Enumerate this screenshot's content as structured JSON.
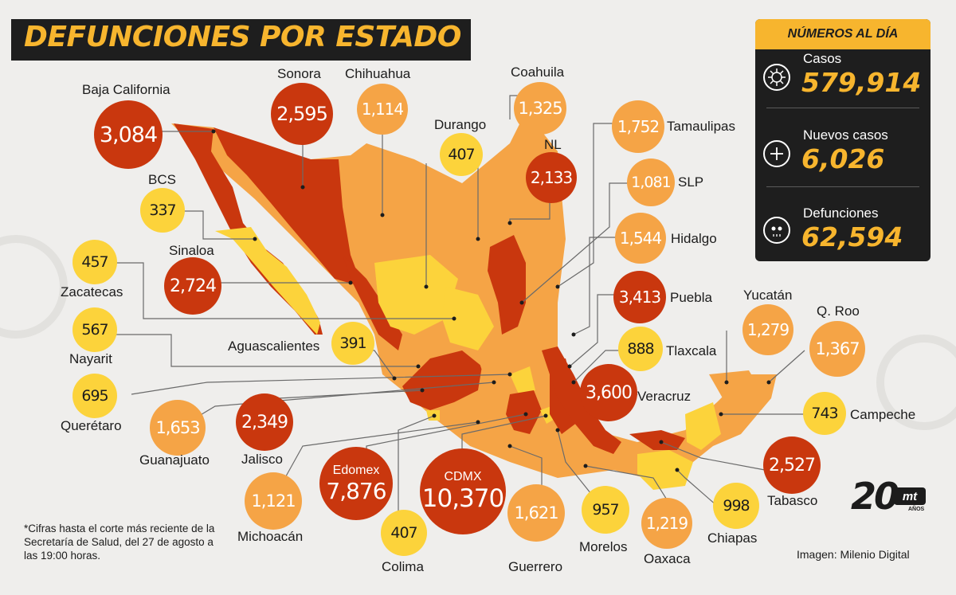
{
  "title": "DEFUNCIONES POR ESTADO",
  "panel": {
    "heading": "NÚMEROS AL DÍA",
    "stats": [
      {
        "label": "Casos",
        "value": "579,914",
        "icon": "virus-icon"
      },
      {
        "label": "Nuevos casos",
        "value": "6,026",
        "icon": "plus-circle-icon"
      },
      {
        "label": "Defunciones",
        "value": "62,594",
        "icon": "skull-icon"
      }
    ]
  },
  "states": [
    {
      "name": "Baja California",
      "value": "3,084",
      "level": "high"
    },
    {
      "name": "Sonora",
      "value": "2,595",
      "level": "high"
    },
    {
      "name": "Chihuahua",
      "value": "1,114",
      "level": "medium"
    },
    {
      "name": "Coahuila",
      "value": "1,325",
      "level": "medium"
    },
    {
      "name": "Durango",
      "value": "407",
      "level": "low"
    },
    {
      "name": "NL",
      "value": "2,133",
      "level": "high"
    },
    {
      "name": "Tamaulipas",
      "value": "1,752",
      "level": "medium"
    },
    {
      "name": "BCS",
      "value": "337",
      "level": "low"
    },
    {
      "name": "SLP",
      "value": "1,081",
      "level": "medium"
    },
    {
      "name": "Hidalgo",
      "value": "1,544",
      "level": "medium"
    },
    {
      "name": "Zacatecas",
      "value": "457",
      "level": "low"
    },
    {
      "name": "Sinaloa",
      "value": "2,724",
      "level": "high"
    },
    {
      "name": "Puebla",
      "value": "3,413",
      "level": "high"
    },
    {
      "name": "Nayarit",
      "value": "567",
      "level": "low"
    },
    {
      "name": "Aguascalientes",
      "value": "391",
      "level": "low"
    },
    {
      "name": "Tlaxcala",
      "value": "888",
      "level": "low"
    },
    {
      "name": "Yucatán",
      "value": "1,279",
      "level": "medium"
    },
    {
      "name": "Q. Roo",
      "value": "1,367",
      "level": "medium"
    },
    {
      "name": "Querétaro",
      "value": "695",
      "level": "low"
    },
    {
      "name": "Veracruz",
      "value": "3,600",
      "level": "high"
    },
    {
      "name": "Campeche",
      "value": "743",
      "level": "low"
    },
    {
      "name": "Guanajuato",
      "value": "1,653",
      "level": "medium"
    },
    {
      "name": "Jalisco",
      "value": "2,349",
      "level": "high"
    },
    {
      "name": "Edomex",
      "value": "7,876",
      "level": "high"
    },
    {
      "name": "CDMX",
      "value": "10,370",
      "level": "high"
    },
    {
      "name": "Tabasco",
      "value": "2,527",
      "level": "high"
    },
    {
      "name": "Michoacán",
      "value": "1,121",
      "level": "medium"
    },
    {
      "name": "Colima",
      "value": "407",
      "level": "low"
    },
    {
      "name": "Guerrero",
      "value": "1,621",
      "level": "medium"
    },
    {
      "name": "Morelos",
      "value": "957",
      "level": "low"
    },
    {
      "name": "Oaxaca",
      "value": "1,219",
      "level": "medium"
    },
    {
      "name": "Chiapas",
      "value": "998",
      "level": "low"
    }
  ],
  "note": "*Cifras hasta el corte más reciente de la Secretaría de Salud, del 27 de agosto a las 19:00 horas.",
  "credit": "Imagen: Milenio Digital",
  "logo": {
    "number": "20",
    "brand": "mt",
    "sub": "AÑOS"
  },
  "colors": {
    "high": "#c9370e",
    "medium": "#f5a446",
    "low": "#fcd33b",
    "accent": "#f7b52e",
    "panel": "#1e1e1e"
  }
}
